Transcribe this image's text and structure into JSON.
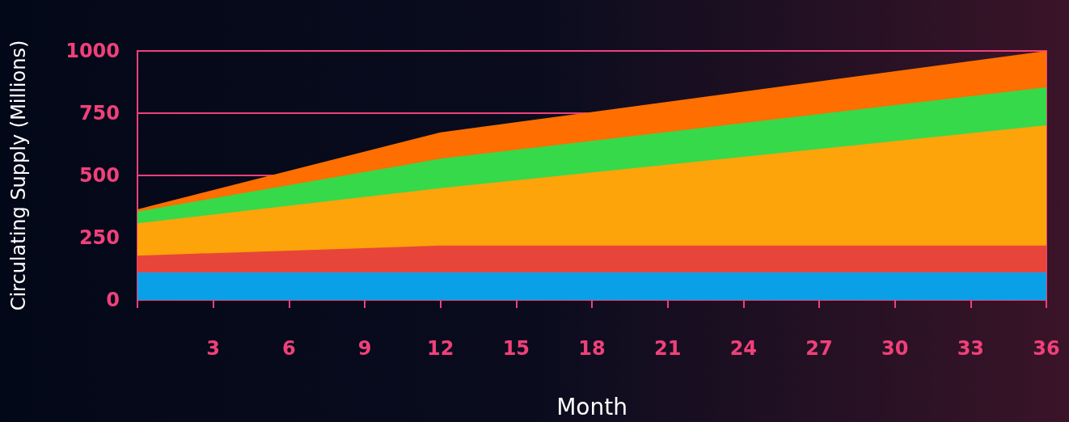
{
  "chart_data": {
    "type": "area",
    "stacked": true,
    "xlabel": "Month",
    "ylabel": "Circulating Supply (Millions)",
    "x": [
      0,
      12,
      36
    ],
    "series": [
      {
        "color": "#0aa0e8",
        "values": [
          110,
          110,
          110
        ]
      },
      {
        "color": "#e8453a",
        "values": [
          68,
          108,
          108
        ]
      },
      {
        "color": "#fca40a",
        "values": [
          130,
          231,
          483
        ]
      },
      {
        "color": "#36d94a",
        "values": [
          47,
          118,
          153
        ]
      },
      {
        "color": "#ff6e00",
        "values": [
          9,
          106,
          146
        ]
      }
    ],
    "xlim": [
      0,
      36
    ],
    "xticks": [
      {
        "value": 0,
        "label": null
      },
      3,
      6,
      9,
      12,
      15,
      18,
      21,
      24,
      27,
      30,
      33,
      36
    ],
    "ylim": [
      0,
      1000
    ],
    "yticks": [
      0,
      250,
      500,
      750,
      1000
    ],
    "grid": "y"
  }
}
